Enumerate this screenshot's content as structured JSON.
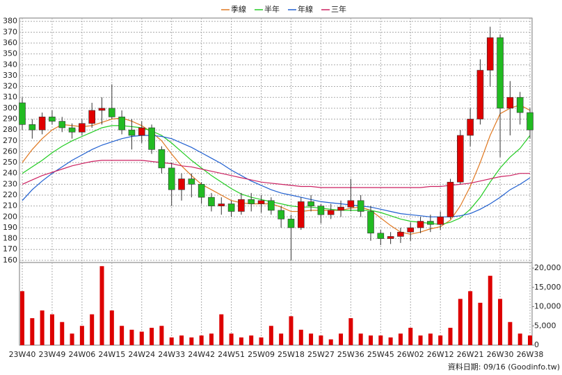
{
  "chart_data": [
    {
      "type": "candlestick",
      "categories": [
        "23W40",
        null,
        null,
        "23W49",
        null,
        null,
        "24W06",
        null,
        null,
        "24W15",
        null,
        null,
        "24W24",
        null,
        null,
        "24W33",
        null,
        null,
        "24W42",
        null,
        null,
        "24W51",
        null,
        null,
        "25W09",
        null,
        null,
        "25W18",
        null,
        null,
        "25W27",
        null,
        null,
        "25W36",
        null,
        null,
        "25W45",
        null,
        null,
        "26W02",
        null,
        null,
        "26W12",
        null,
        null,
        "26W21",
        null,
        null,
        "26W30",
        null,
        null,
        "26W38"
      ],
      "open": [
        305,
        285,
        280,
        292,
        288,
        282,
        278,
        286,
        298,
        300,
        292,
        280,
        275,
        282,
        262,
        245,
        225,
        235,
        230,
        218,
        210,
        212,
        205,
        216,
        212,
        215,
        206,
        198,
        190,
        214,
        210,
        202,
        206,
        209,
        215,
        205,
        185,
        180,
        182,
        186,
        190,
        196,
        193,
        200,
        232,
        275,
        290,
        335,
        365,
        300,
        310,
        296
      ],
      "high": [
        310,
        290,
        296,
        298,
        292,
        286,
        290,
        305,
        310,
        322,
        298,
        290,
        288,
        285,
        265,
        250,
        240,
        240,
        232,
        222,
        218,
        215,
        222,
        222,
        220,
        218,
        210,
        202,
        218,
        220,
        212,
        212,
        215,
        235,
        220,
        210,
        188,
        186,
        190,
        195,
        200,
        202,
        205,
        235,
        280,
        300,
        345,
        375,
        368,
        325,
        315,
        300
      ],
      "low": [
        280,
        272,
        276,
        285,
        278,
        272,
        275,
        282,
        285,
        290,
        276,
        262,
        268,
        258,
        240,
        210,
        215,
        218,
        212,
        205,
        202,
        200,
        202,
        205,
        204,
        202,
        190,
        160,
        188,
        205,
        194,
        198,
        200,
        205,
        200,
        178,
        174,
        175,
        176,
        178,
        185,
        186,
        188,
        198,
        230,
        265,
        285,
        320,
        255,
        275,
        285,
        272
      ],
      "close": [
        285,
        280,
        292,
        288,
        282,
        278,
        286,
        298,
        300,
        292,
        280,
        275,
        282,
        262,
        245,
        225,
        235,
        230,
        218,
        210,
        212,
        205,
        216,
        212,
        215,
        206,
        198,
        190,
        214,
        210,
        202,
        206,
        209,
        215,
        205,
        185,
        180,
        182,
        186,
        190,
        196,
        193,
        200,
        232,
        275,
        290,
        335,
        365,
        300,
        310,
        296,
        280
      ],
      "up_color": "#e00000",
      "down_color": "#22bb22",
      "ylim": [
        158,
        383
      ],
      "yticks": [
        160,
        170,
        180,
        190,
        200,
        210,
        220,
        230,
        240,
        250,
        260,
        270,
        280,
        290,
        300,
        310,
        320,
        330,
        340,
        350,
        360,
        370,
        380
      ],
      "grid": true,
      "legend": "top",
      "series": [
        {
          "name": "季線",
          "color": "#e07820",
          "values": [
            250,
            262,
            272,
            280,
            285,
            284,
            283,
            284,
            287,
            290,
            291,
            288,
            284,
            278,
            270,
            258,
            247,
            238,
            230,
            225,
            220,
            215,
            213,
            212,
            212,
            212,
            209,
            205,
            205,
            206,
            206,
            206,
            206,
            208,
            209,
            206,
            199,
            192,
            186,
            184,
            186,
            189,
            191,
            197,
            210,
            228,
            250,
            275,
            295,
            300,
            303,
            298
          ]
        },
        {
          "name": "半年",
          "color": "#22cc22",
          "values": [
            240,
            246,
            252,
            259,
            265,
            270,
            274,
            278,
            282,
            284,
            284,
            283,
            282,
            279,
            275,
            268,
            260,
            252,
            245,
            238,
            232,
            226,
            221,
            218,
            216,
            214,
            212,
            210,
            209,
            209,
            208,
            207,
            206,
            206,
            206,
            206,
            204,
            201,
            198,
            196,
            195,
            194,
            193,
            195,
            199,
            207,
            218,
            232,
            245,
            255,
            263,
            275
          ]
        },
        {
          "name": "年線",
          "color": "#1f5fd0",
          "values": [
            215,
            225,
            233,
            240,
            246,
            252,
            257,
            262,
            266,
            269,
            272,
            274,
            275,
            275,
            274,
            272,
            268,
            264,
            259,
            254,
            249,
            243,
            238,
            233,
            229,
            225,
            222,
            220,
            218,
            216,
            214,
            213,
            212,
            211,
            210,
            209,
            207,
            205,
            203,
            202,
            201,
            200,
            200,
            200,
            201,
            203,
            207,
            212,
            218,
            225,
            230,
            236
          ]
        },
        {
          "name": "三年",
          "color": "#cc2060",
          "values": [
            230,
            234,
            238,
            241,
            244,
            247,
            249,
            251,
            252,
            252,
            252,
            252,
            252,
            251,
            250,
            249,
            247,
            246,
            244,
            242,
            240,
            238,
            236,
            234,
            232,
            231,
            230,
            229,
            228,
            228,
            227,
            227,
            227,
            227,
            227,
            227,
            227,
            227,
            227,
            227,
            227,
            228,
            228,
            229,
            230,
            231,
            233,
            235,
            237,
            238,
            240,
            240
          ]
        }
      ]
    },
    {
      "type": "bar",
      "color": "#dd0000",
      "values": [
        14000,
        7000,
        9000,
        8000,
        6000,
        3000,
        5000,
        8000,
        20500,
        9000,
        5000,
        4000,
        3500,
        4500,
        5000,
        2000,
        2500,
        2000,
        2500,
        3000,
        8000,
        3000,
        2000,
        2500,
        2000,
        5000,
        3000,
        7500,
        4000,
        3000,
        2500,
        1500,
        3000,
        7000,
        3000,
        2500,
        2500,
        2000,
        3000,
        4500,
        2500,
        3000,
        2500,
        4500,
        12000,
        14000,
        11000,
        18000,
        12000,
        6000,
        3000,
        2500
      ],
      "ylim": [
        0,
        21450
      ],
      "yticks": [
        0,
        {
          "value": 5000,
          "label": "5,000"
        },
        {
          "value": 10000,
          "label": "10,000"
        },
        {
          "value": 15000,
          "label": "15,000"
        },
        {
          "value": 20000,
          "label": "20,000"
        }
      ]
    }
  ],
  "footer": "資料日期: 09/16 (Goodinfo.tw)"
}
